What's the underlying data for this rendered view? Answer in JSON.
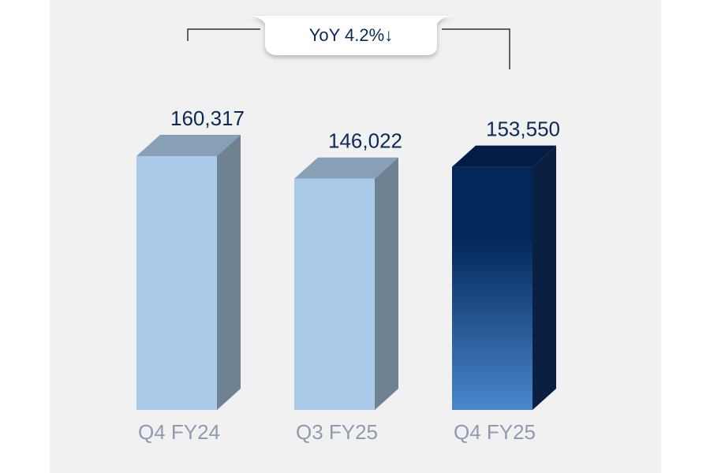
{
  "chart_data": {
    "type": "bar3d",
    "annotation": "YoY 4.2%↓",
    "categories": [
      "Q4 FY24",
      "Q3 FY25",
      "Q4 FY25"
    ],
    "values": [
      160317,
      146022,
      153550
    ],
    "value_labels": [
      "160,317",
      "146,022",
      "153,550"
    ],
    "colors": [
      "#a9cbe9",
      "#a9cbe9",
      "#03275a"
    ]
  }
}
